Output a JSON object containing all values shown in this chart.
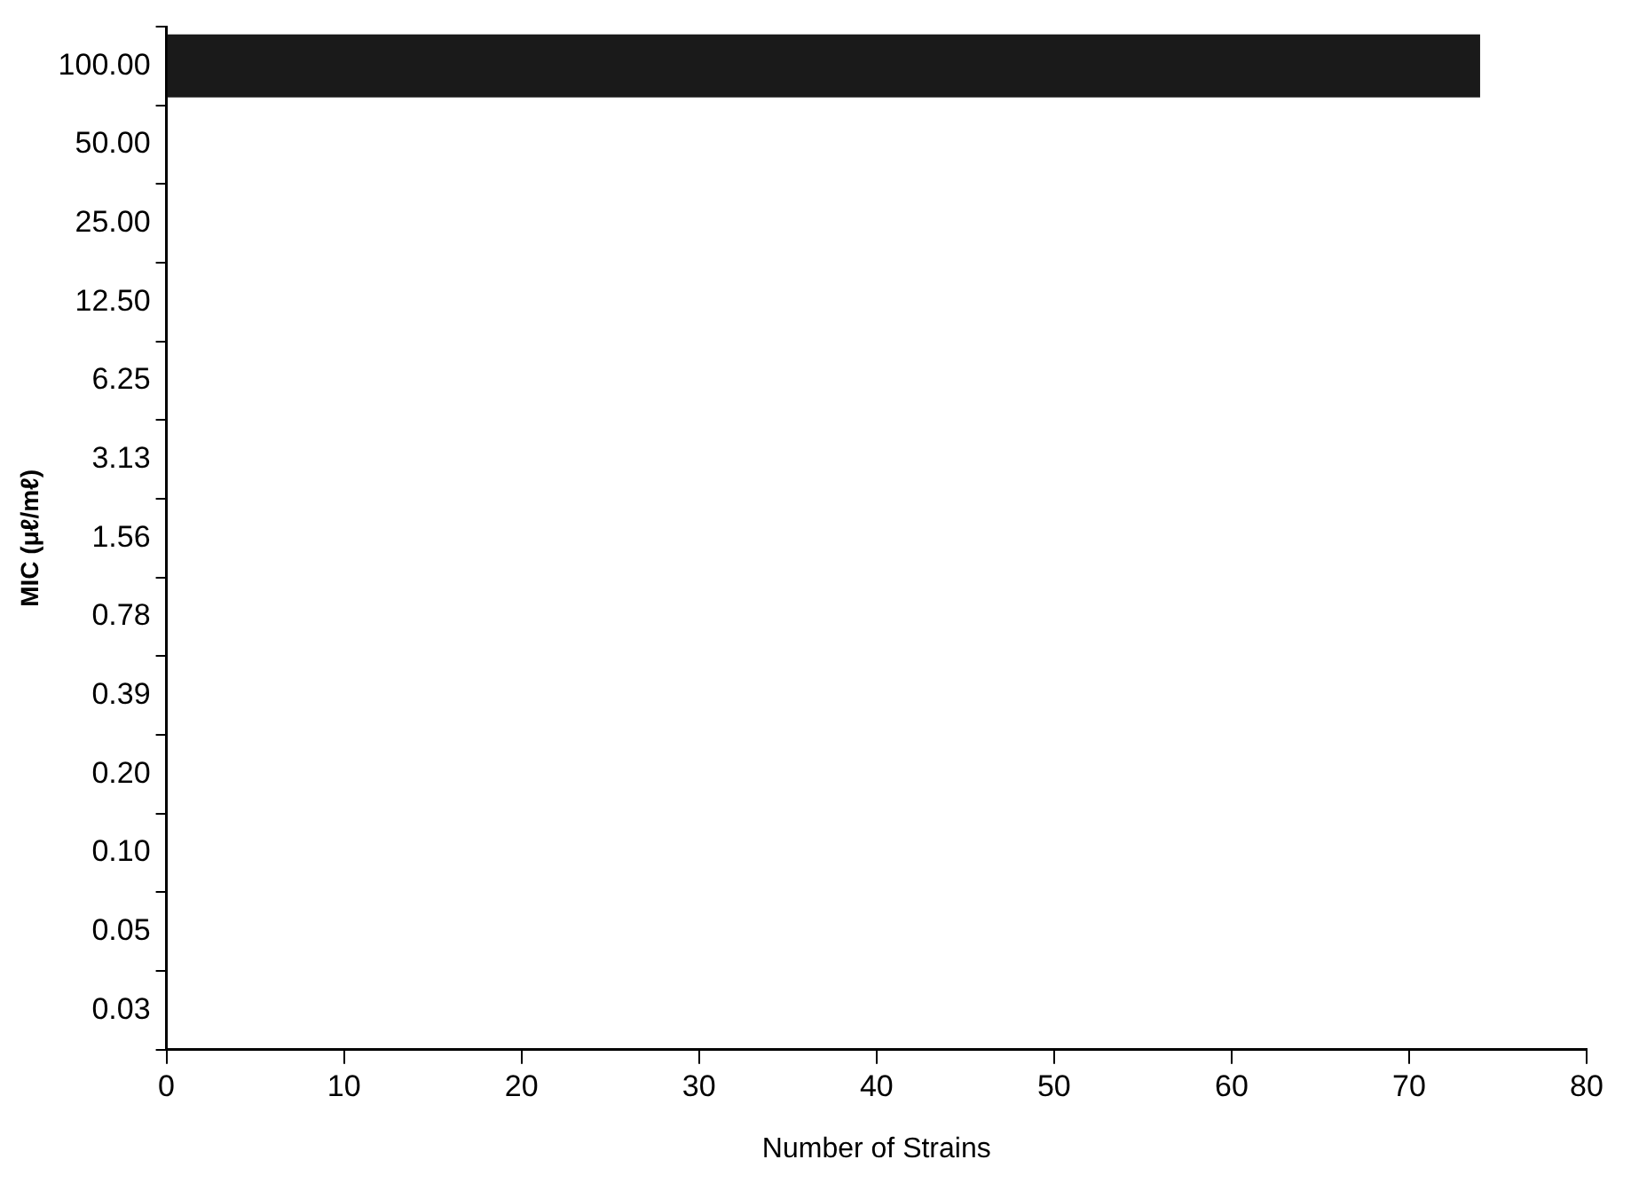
{
  "chart_data": {
    "type": "bar",
    "orientation": "horizontal",
    "xlabel": "Number of Strains",
    "ylabel": "MIC (μℓ/mℓ)",
    "categories": [
      "100.00",
      "50.00",
      "25.00",
      "12.50",
      "6.25",
      "3.13",
      "1.56",
      "0.78",
      "0.39",
      "0.20",
      "0.10",
      "0.05",
      "0.03"
    ],
    "series": [
      {
        "color": "#1a1a1a",
        "values": [
          74,
          0,
          0,
          0,
          0,
          0,
          0,
          0,
          0,
          0,
          0,
          0,
          0
        ]
      }
    ],
    "xlim": [
      0,
      80
    ],
    "xticks": [
      0,
      10,
      20,
      30,
      40,
      50,
      60,
      70,
      80
    ],
    "legend": false
  }
}
